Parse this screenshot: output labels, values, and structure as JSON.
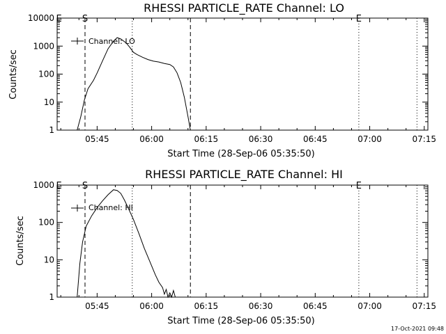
{
  "footer": {
    "timestamp": "17-Oct-2021 09:48"
  },
  "chart_data": [
    {
      "type": "line",
      "title": "RHESSI PARTICLE_RATE Channel: LO",
      "xlabel": "Start Time (28-Sep-06 05:35:50)",
      "ylabel": "Counts/sec",
      "xlim": [
        "05:34:00",
        "07:16:00"
      ],
      "x_ticks": [
        "05:45",
        "06:00",
        "06:15",
        "06:30",
        "06:45",
        "07:00",
        "07:15"
      ],
      "ylim": [
        1,
        10000
      ],
      "y_scale": "log",
      "y_ticks": [
        "1",
        "10",
        "100",
        "1000",
        "10000"
      ],
      "legend": {
        "label": "Channel: LO",
        "position": "top-left"
      },
      "markers": [
        {
          "label": "E",
          "time": "05:34:30"
        },
        {
          "label": "S",
          "time": "05:41:40"
        },
        {
          "label": "E",
          "time": "06:57:00"
        }
      ],
      "vlines": [
        {
          "time": "05:41:40",
          "style": "dashed"
        },
        {
          "time": "05:54:40",
          "style": "dotted"
        },
        {
          "time": "06:10:40",
          "style": "dashed"
        },
        {
          "time": "06:57:00",
          "style": "dotted"
        },
        {
          "time": "07:13:00",
          "style": "dotted"
        }
      ],
      "series": [
        {
          "name": "Channel: LO",
          "x": [
            "05:39:30",
            "05:40:30",
            "05:41:30",
            "05:42:30",
            "05:44:00",
            "05:45:00",
            "05:46:30",
            "05:48:00",
            "05:49:30",
            "05:50:30",
            "05:51:30",
            "05:53:00",
            "05:54:00",
            "05:55:00",
            "05:56:00",
            "05:57:30",
            "05:59:00",
            "06:00:30",
            "06:02:00",
            "06:03:30",
            "06:05:00",
            "06:06:00",
            "06:07:00",
            "06:08:00",
            "06:09:00",
            "06:10:00",
            "06:10:40"
          ],
          "values": [
            1,
            3,
            12,
            30,
            60,
            110,
            300,
            800,
            1500,
            2000,
            1800,
            1300,
            900,
            600,
            500,
            400,
            330,
            290,
            270,
            240,
            220,
            180,
            110,
            50,
            15,
            3,
            1
          ]
        }
      ]
    },
    {
      "type": "line",
      "title": "RHESSI PARTICLE_RATE Channel: HI",
      "xlabel": "Start Time (28-Sep-06 05:35:50)",
      "ylabel": "Counts/sec",
      "xlim": [
        "05:34:00",
        "07:16:00"
      ],
      "x_ticks": [
        "05:45",
        "06:00",
        "06:15",
        "06:30",
        "06:45",
        "07:00",
        "07:15"
      ],
      "ylim": [
        1,
        1000
      ],
      "y_scale": "log",
      "y_ticks": [
        "1",
        "10",
        "100",
        "1000"
      ],
      "legend": {
        "label": "Channel: HI",
        "position": "top-left"
      },
      "markers": [
        {
          "label": "E",
          "time": "05:34:30"
        },
        {
          "label": "S",
          "time": "05:41:40"
        },
        {
          "label": "E",
          "time": "06:57:00"
        }
      ],
      "vlines": [
        {
          "time": "05:41:40",
          "style": "dashed"
        },
        {
          "time": "05:54:40",
          "style": "dotted"
        },
        {
          "time": "06:10:40",
          "style": "dashed"
        },
        {
          "time": "06:57:00",
          "style": "dotted"
        },
        {
          "time": "07:13:00",
          "style": "dotted"
        }
      ],
      "series": [
        {
          "name": "Channel: HI",
          "x": [
            "05:39:30",
            "05:40:15",
            "05:41:00",
            "05:42:00",
            "05:43:30",
            "05:45:00",
            "05:46:30",
            "05:48:00",
            "05:49:30",
            "05:50:30",
            "05:51:30",
            "05:52:30",
            "05:53:30",
            "05:55:00",
            "05:56:30",
            "05:58:00",
            "05:59:30",
            "06:01:00",
            "06:02:00",
            "06:03:00",
            "06:03:30",
            "06:04:00",
            "06:04:30",
            "06:05:00",
            "06:05:30",
            "06:06:00",
            "06:06:30"
          ],
          "values": [
            1,
            8,
            30,
            80,
            150,
            250,
            380,
            550,
            750,
            720,
            600,
            400,
            250,
            120,
            50,
            20,
            9,
            4,
            2.5,
            1.8,
            1.2,
            1.6,
            1,
            1.3,
            1,
            1.5,
            1
          ]
        }
      ]
    }
  ]
}
